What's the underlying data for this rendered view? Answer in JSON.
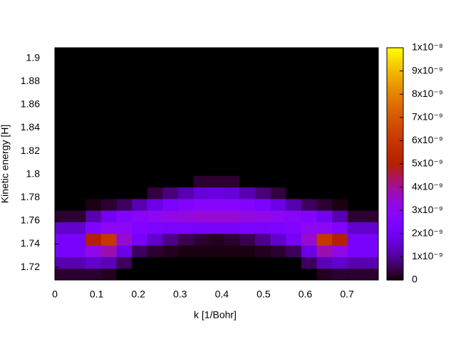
{
  "chart_data": {
    "type": "heatmap",
    "xlabel": "k [1/Bohr]",
    "ylabel": "Kinetic energy [H]",
    "xlim": [
      0,
      0.775
    ],
    "ylim": [
      1.709,
      1.909
    ],
    "xticks": [
      0,
      0.1,
      0.2,
      0.3,
      0.4,
      0.5,
      0.6,
      0.7
    ],
    "yticks": [
      1.72,
      1.74,
      1.76,
      1.78,
      1.8,
      1.82,
      1.84,
      1.86,
      1.88,
      1.9
    ],
    "palette": "gnuplot",
    "cblim": [
      0,
      1e-08
    ],
    "cbticks": [
      0,
      {
        "value": 1e-09,
        "label": "1x10⁻⁹"
      },
      {
        "value": 2e-09,
        "label": "2x10⁻⁹"
      },
      {
        "value": 3e-09,
        "label": "3x10⁻⁹"
      },
      {
        "value": 4e-09,
        "label": "4x10⁻⁹"
      },
      {
        "value": 5e-09,
        "label": "5x10⁻⁹"
      },
      {
        "value": 6e-09,
        "label": "6x10⁻⁹"
      },
      {
        "value": 7e-09,
        "label": "7x10⁻⁹"
      },
      {
        "value": 8e-09,
        "label": "8x10⁻⁹"
      },
      {
        "value": 9e-09,
        "label": "9x10⁻⁹"
      },
      {
        "value": 1e-08,
        "label": "1x10⁻⁸"
      }
    ],
    "z": [
      [
        3e-10,
        3e-10,
        3e-10,
        2e-10,
        0,
        0,
        0,
        0,
        0,
        0,
        0,
        0,
        0,
        0,
        0,
        0,
        0,
        2e-10,
        3e-10,
        3e-10,
        3e-10
      ],
      [
        1.2e-09,
        1.2e-09,
        1.5e-09,
        1.3e-09,
        6e-10,
        0,
        0,
        0,
        0,
        0,
        0,
        0,
        0,
        0,
        0,
        0,
        6e-10,
        1.3e-09,
        1.5e-09,
        1.2e-09,
        1.2e-09
      ],
      [
        2.2e-09,
        2.2e-09,
        3.2e-09,
        3.8e-09,
        1.8e-09,
        6e-10,
        3e-10,
        2e-10,
        1e-10,
        1e-10,
        1e-10,
        1e-10,
        1e-10,
        2e-10,
        3e-10,
        6e-10,
        1.8e-09,
        3.8e-09,
        3.2e-09,
        2.2e-09,
        2.2e-09
      ],
      [
        2.2e-09,
        2.2e-09,
        5e-09,
        6e-09,
        3.5e-09,
        2.2e-09,
        1.5e-09,
        9e-10,
        5e-10,
        3e-10,
        2e-10,
        3e-10,
        5e-10,
        9e-10,
        1.5e-09,
        2.2e-09,
        3.5e-09,
        6e-09,
        5e-09,
        2.2e-09,
        2.2e-09
      ],
      [
        1.5e-09,
        1.5e-09,
        2.5e-09,
        3e-09,
        3e-09,
        2.6e-09,
        2.4e-09,
        2.3e-09,
        2.3e-09,
        2.2e-09,
        2.2e-09,
        2.2e-09,
        2.3e-09,
        2.3e-09,
        2.4e-09,
        2.6e-09,
        3e-09,
        3e-09,
        2.5e-09,
        1.5e-09,
        1.5e-09
      ],
      [
        3e-10,
        3e-10,
        1.2e-09,
        2e-09,
        2.5e-09,
        2.8e-09,
        3e-09,
        3.2e-09,
        3.3e-09,
        3.4e-09,
        3.4e-09,
        3.4e-09,
        3.3e-09,
        3.2e-09,
        3e-09,
        2.8e-09,
        2.5e-09,
        2e-09,
        1.2e-09,
        3e-10,
        3e-10
      ],
      [
        0,
        0,
        1e-10,
        3e-10,
        6e-10,
        1.2e-09,
        1.8e-09,
        2.3e-09,
        2.6e-09,
        2.7e-09,
        2.8e-09,
        2.7e-09,
        2.6e-09,
        2.3e-09,
        1.8e-09,
        1.2e-09,
        6e-10,
        3e-10,
        1e-10,
        0,
        0
      ],
      [
        0,
        0,
        0,
        0,
        0,
        0,
        4e-10,
        8e-10,
        1.2e-09,
        1.6e-09,
        1.7e-09,
        1.6e-09,
        1.2e-09,
        8e-10,
        4e-10,
        0,
        0,
        0,
        0,
        0,
        0
      ],
      [
        0,
        0,
        0,
        0,
        0,
        0,
        0,
        0,
        0,
        3e-10,
        3e-10,
        3e-10,
        0,
        0,
        0,
        0,
        0,
        0,
        0,
        0,
        0
      ],
      [
        0,
        0,
        0,
        0,
        0,
        0,
        0,
        0,
        0,
        0,
        0,
        0,
        0,
        0,
        0,
        0,
        0,
        0,
        0,
        0,
        0
      ],
      [
        0,
        0,
        0,
        0,
        0,
        0,
        0,
        0,
        0,
        0,
        0,
        0,
        0,
        0,
        0,
        0,
        0,
        0,
        0,
        0,
        0
      ],
      [
        0,
        0,
        0,
        0,
        0,
        0,
        0,
        0,
        0,
        0,
        0,
        0,
        0,
        0,
        0,
        0,
        0,
        0,
        0,
        0,
        0
      ],
      [
        0,
        0,
        0,
        0,
        0,
        0,
        0,
        0,
        0,
        0,
        0,
        0,
        0,
        0,
        0,
        0,
        0,
        0,
        0,
        0,
        0
      ],
      [
        0,
        0,
        0,
        0,
        0,
        0,
        0,
        0,
        0,
        0,
        0,
        0,
        0,
        0,
        0,
        0,
        0,
        0,
        0,
        0,
        0
      ],
      [
        0,
        0,
        0,
        0,
        0,
        0,
        0,
        0,
        0,
        0,
        0,
        0,
        0,
        0,
        0,
        0,
        0,
        0,
        0,
        0,
        0
      ],
      [
        0,
        0,
        0,
        0,
        0,
        0,
        0,
        0,
        0,
        0,
        0,
        0,
        0,
        0,
        0,
        0,
        0,
        0,
        0,
        0,
        0
      ],
      [
        0,
        0,
        0,
        0,
        0,
        0,
        0,
        0,
        0,
        0,
        0,
        0,
        0,
        0,
        0,
        0,
        0,
        0,
        0,
        0,
        0
      ],
      [
        0,
        0,
        0,
        0,
        0,
        0,
        0,
        0,
        0,
        0,
        0,
        0,
        0,
        0,
        0,
        0,
        0,
        0,
        0,
        0,
        0
      ],
      [
        0,
        0,
        0,
        0,
        0,
        0,
        0,
        0,
        0,
        0,
        0,
        0,
        0,
        0,
        0,
        0,
        0,
        0,
        0,
        0,
        0
      ],
      [
        0,
        0,
        0,
        0,
        0,
        0,
        0,
        0,
        0,
        0,
        0,
        0,
        0,
        0,
        0,
        0,
        0,
        0,
        0,
        0,
        0
      ]
    ]
  }
}
